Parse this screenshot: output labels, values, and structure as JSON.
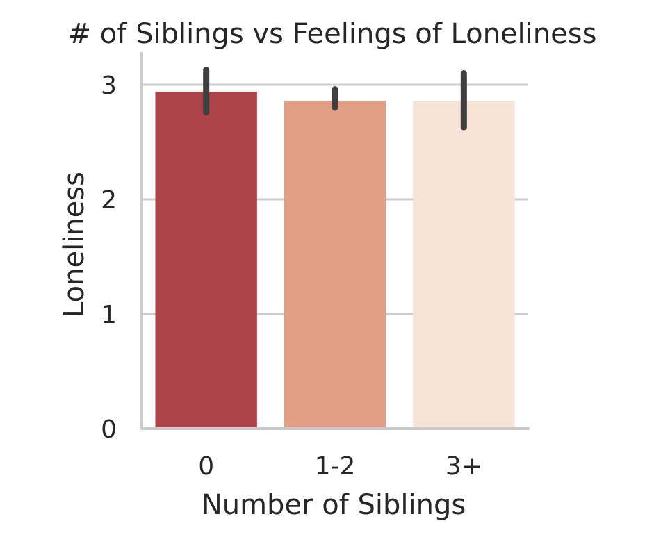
{
  "chart_data": {
    "type": "bar",
    "title": "# of Siblings vs Feelings of Loneliness",
    "xlabel": "Number of Siblings",
    "ylabel": "Loneliness",
    "categories": [
      "0",
      "1-2",
      "3+"
    ],
    "values": [
      2.94,
      2.86,
      2.86
    ],
    "error_low": [
      2.76,
      2.8,
      2.63
    ],
    "error_high": [
      3.13,
      2.96,
      3.1
    ],
    "colors": [
      "#ab4348",
      "#e39f84",
      "#f6e2d6"
    ],
    "ylim": [
      0,
      3.2
    ],
    "yticks": [
      0,
      1,
      2,
      3
    ],
    "grid": "horizontal"
  }
}
